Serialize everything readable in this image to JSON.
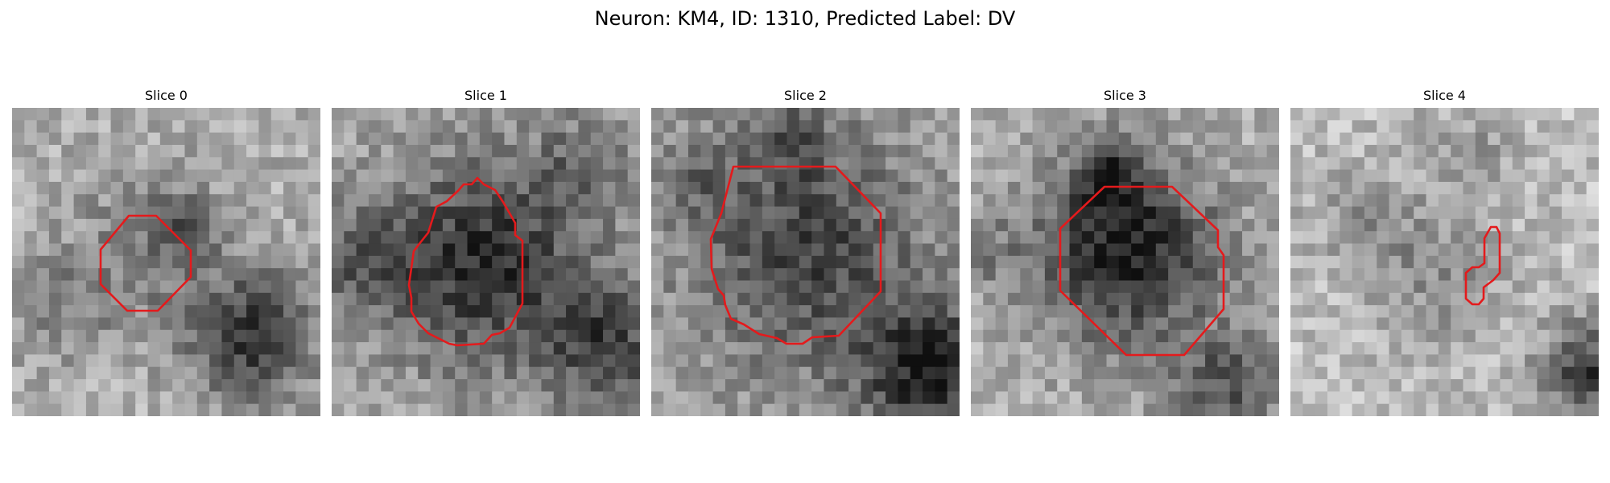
{
  "figure": {
    "title": "Neuron: KM4, ID: 1310, Predicted Label: DV"
  },
  "colors": {
    "contour": "#e41a1c",
    "background": "#ffffff"
  },
  "panels": [
    {
      "title": "Slice 0",
      "image_kind": "grayscale-texture",
      "blob": "faint",
      "dark_band": "bottom-right"
    },
    {
      "title": "Slice 1",
      "image_kind": "grayscale-texture",
      "blob": "dark-center",
      "dark_band": "bottom-right"
    },
    {
      "title": "Slice 2",
      "image_kind": "grayscale-texture",
      "blob": "dark-center",
      "dark_band": "bottom-right"
    },
    {
      "title": "Slice 3",
      "image_kind": "grayscale-texture",
      "blob": "darkest-center",
      "dark_band": "bottom-center"
    },
    {
      "title": "Slice 4",
      "image_kind": "grayscale-texture",
      "blob": "none",
      "dark_band": "right-edge"
    }
  ]
}
